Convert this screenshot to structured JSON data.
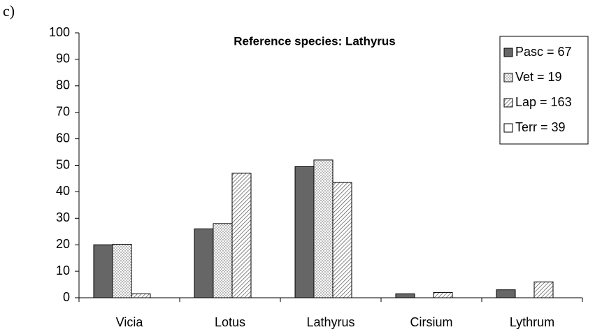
{
  "chart_data": {
    "type": "bar",
    "panel_label": "c)",
    "title": "Reference species: Lathyrus",
    "categories": [
      "Vicia",
      "Lotus",
      "Lathyrus",
      "Cirsium",
      "Lythrum"
    ],
    "series": [
      {
        "name": "Pasc = 67",
        "color": "#666666",
        "pattern": "solid",
        "values": [
          20,
          26,
          49.5,
          1.5,
          3
        ]
      },
      {
        "name": "Vet = 19",
        "color": "#ffffff",
        "pattern": "dots",
        "values": [
          20.2,
          28,
          52,
          0,
          0
        ]
      },
      {
        "name": "Lap = 163",
        "color": "#ffffff",
        "pattern": "hatch",
        "values": [
          1.5,
          47,
          43.5,
          2,
          6
        ]
      },
      {
        "name": "Terr = 39",
        "color": "#ffffff",
        "pattern": "solid",
        "values": [
          0,
          0,
          0,
          0,
          0
        ]
      }
    ],
    "ylim": [
      0,
      100
    ],
    "yticks": [
      0,
      10,
      20,
      30,
      40,
      50,
      60,
      70,
      80,
      90,
      100
    ],
    "grid": false,
    "legend": "top-right"
  }
}
